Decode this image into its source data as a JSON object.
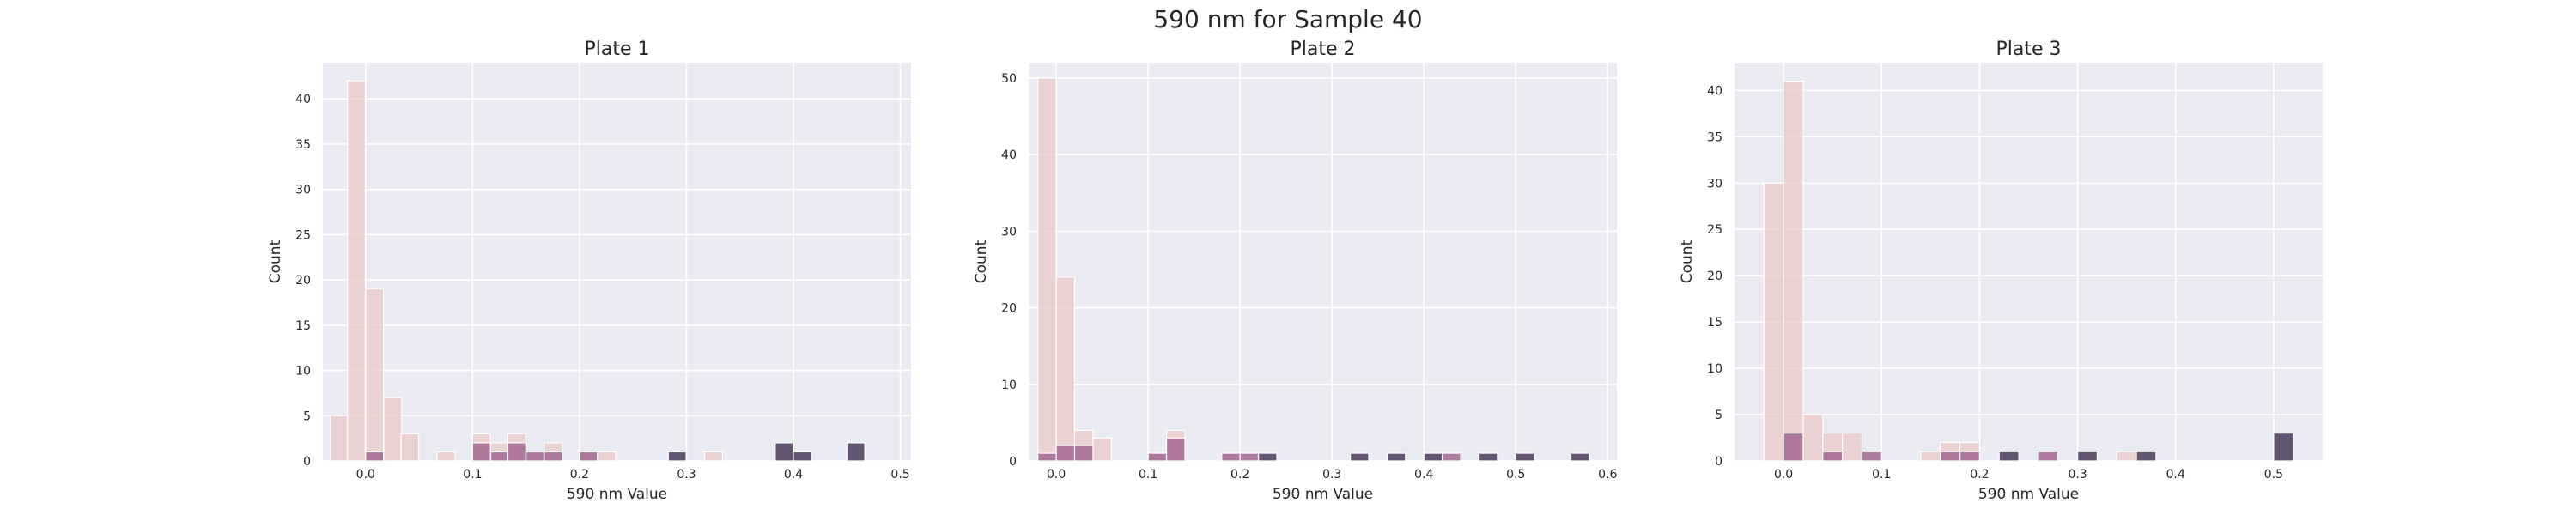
{
  "figure": {
    "title": "590 nm for Sample 40"
  },
  "colors": {
    "background": "#ffffff",
    "axes_bg": "#eaeaf2",
    "grid": "#ffffff",
    "bar_edge": "#ffffff"
  },
  "chart_data": [
    {
      "type": "bar",
      "title": "Plate 1",
      "xlabel": "590 nm Value",
      "ylabel": "Count",
      "xlim": [
        -0.04,
        0.51
      ],
      "ylim": [
        0,
        44
      ],
      "xticks": [
        "0.0",
        "0.1",
        "0.2",
        "0.3",
        "0.4",
        "0.5"
      ],
      "yticks": [
        "0",
        "5",
        "10",
        "15",
        "20",
        "25",
        "30",
        "35",
        "40"
      ],
      "bin_width": 0.0167,
      "grid": true,
      "series": [
        {
          "color": "#e8c9c6",
          "opacity": 0.75,
          "bins": [
            [
              -0.033,
              5
            ],
            [
              -0.017,
              42
            ],
            [
              0.0,
              19
            ],
            [
              0.017,
              7
            ],
            [
              0.033,
              3
            ],
            [
              0.067,
              1
            ],
            [
              0.1,
              3
            ],
            [
              0.117,
              2
            ],
            [
              0.133,
              3
            ],
            [
              0.15,
              1
            ],
            [
              0.167,
              2
            ],
            [
              0.2,
              1
            ],
            [
              0.217,
              1
            ],
            [
              0.317,
              1
            ]
          ]
        },
        {
          "color": "#a2698f",
          "opacity": 0.85,
          "bins": [
            [
              0.0,
              1
            ],
            [
              0.1,
              2
            ],
            [
              0.117,
              1
            ],
            [
              0.133,
              2
            ],
            [
              0.15,
              1
            ],
            [
              0.167,
              1
            ],
            [
              0.2,
              1
            ]
          ]
        },
        {
          "color": "#4a3b5c",
          "opacity": 0.85,
          "bins": [
            [
              0.283,
              1
            ],
            [
              0.383,
              2
            ],
            [
              0.4,
              1
            ],
            [
              0.45,
              2
            ]
          ]
        }
      ]
    },
    {
      "type": "bar",
      "title": "Plate 2",
      "xlabel": "590 nm Value",
      "ylabel": "Count",
      "xlim": [
        -0.03,
        0.61
      ],
      "ylim": [
        0,
        52
      ],
      "xticks": [
        "0.0",
        "0.1",
        "0.2",
        "0.3",
        "0.4",
        "0.5",
        "0.6"
      ],
      "yticks": [
        "0",
        "10",
        "20",
        "30",
        "40",
        "50"
      ],
      "bin_width": 0.02,
      "grid": true,
      "series": [
        {
          "color": "#e8c9c6",
          "opacity": 0.75,
          "bins": [
            [
              -0.02,
              50
            ],
            [
              0.0,
              24
            ],
            [
              0.02,
              4
            ],
            [
              0.04,
              3
            ],
            [
              0.1,
              1
            ],
            [
              0.12,
              4
            ],
            [
              0.18,
              1
            ]
          ]
        },
        {
          "color": "#a2698f",
          "opacity": 0.85,
          "bins": [
            [
              -0.02,
              1
            ],
            [
              0.0,
              2
            ],
            [
              0.02,
              2
            ],
            [
              0.1,
              1
            ],
            [
              0.12,
              3
            ],
            [
              0.18,
              1
            ],
            [
              0.2,
              1
            ],
            [
              0.42,
              1
            ]
          ]
        },
        {
          "color": "#4a3b5c",
          "opacity": 0.85,
          "bins": [
            [
              0.22,
              1
            ],
            [
              0.32,
              1
            ],
            [
              0.36,
              1
            ],
            [
              0.4,
              1
            ],
            [
              0.46,
              1
            ],
            [
              0.5,
              1
            ],
            [
              0.56,
              1
            ]
          ]
        }
      ]
    },
    {
      "type": "bar",
      "title": "Plate 3",
      "xlabel": "590 nm Value",
      "ylabel": "Count",
      "xlim": [
        -0.05,
        0.55
      ],
      "ylim": [
        0,
        43
      ],
      "xticks": [
        "0.0",
        "0.1",
        "0.2",
        "0.3",
        "0.4",
        "0.5"
      ],
      "yticks": [
        "0",
        "5",
        "10",
        "15",
        "20",
        "25",
        "30",
        "35",
        "40"
      ],
      "bin_width": 0.02,
      "grid": true,
      "series": [
        {
          "color": "#e8c9c6",
          "opacity": 0.75,
          "bins": [
            [
              -0.02,
              30
            ],
            [
              0.0,
              41
            ],
            [
              0.02,
              5
            ],
            [
              0.04,
              3
            ],
            [
              0.06,
              3
            ],
            [
              0.14,
              1
            ],
            [
              0.16,
              2
            ],
            [
              0.18,
              2
            ],
            [
              0.34,
              1
            ]
          ]
        },
        {
          "color": "#a2698f",
          "opacity": 0.85,
          "bins": [
            [
              0.0,
              3
            ],
            [
              0.04,
              1
            ],
            [
              0.08,
              1
            ],
            [
              0.16,
              1
            ],
            [
              0.18,
              1
            ],
            [
              0.26,
              1
            ]
          ]
        },
        {
          "color": "#4a3b5c",
          "opacity": 0.85,
          "bins": [
            [
              0.22,
              1
            ],
            [
              0.3,
              1
            ],
            [
              0.36,
              1
            ],
            [
              0.5,
              3
            ]
          ]
        }
      ]
    }
  ]
}
